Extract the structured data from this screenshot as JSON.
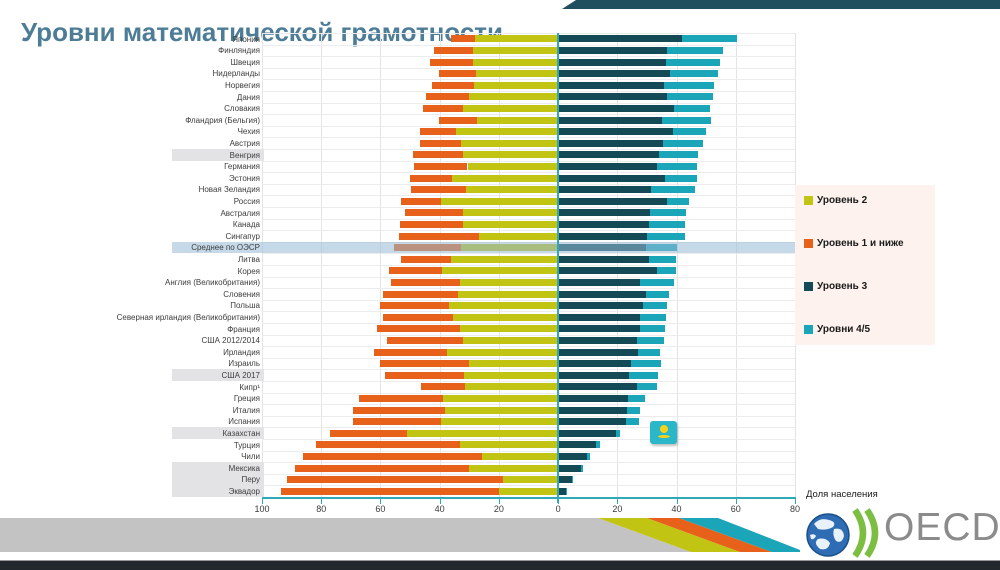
{
  "title": "Уровни математической грамотности",
  "colors": {
    "title": "#4d7d96",
    "level1_and_below": "#e8611a",
    "level2": "#c2c414",
    "level3": "#134a55",
    "level45": "#1aa5b8",
    "axis": "#2fa9b8",
    "highlight_grey": "#e3e3e6",
    "highlight_blue": "rgba(150,186,214,0.55)",
    "legend_bg": "#fdf2ee"
  },
  "axis": {
    "xlabel": "Доля населения",
    "tick_values": [
      -100,
      -80,
      -60,
      -40,
      -20,
      0,
      20,
      40,
      60,
      80
    ],
    "tick_labels": [
      "100",
      "80",
      "60",
      "40",
      "20",
      "0",
      "20",
      "40",
      "60",
      "80"
    ]
  },
  "legend": {
    "items": [
      {
        "label": "Уровень 2",
        "color": "#c2c414"
      },
      {
        "label": "Уровень 1 и ниже",
        "color": "#e8611a"
      },
      {
        "label": "Уровень 3",
        "color": "#134a55"
      },
      {
        "label": "Уровни 4/5",
        "color": "#1aa5b8"
      }
    ]
  },
  "logo": {
    "text": "OECD"
  },
  "chart_data": {
    "type": "bar",
    "subtype": "diverging-stacked-horizontal",
    "unit": "% населения",
    "xlim": [
      -100,
      80
    ],
    "grid": true,
    "legend_position": "right",
    "series_order_note": "values = [Уровень 1 и ниже (влево, внешний), Уровень 2 (влево, внутренний), Уровень 3 (вправо, внутренний), Уровни 4/5 (вправо, внешний)]",
    "rows": [
      {
        "label": "Япония",
        "values": [
          8.2,
          27.9,
          42.0,
          18.4
        ]
      },
      {
        "label": "Финляндия",
        "values": [
          12.9,
          28.9,
          36.7,
          19.1
        ]
      },
      {
        "label": "Швеция",
        "values": [
          14.4,
          28.8,
          36.5,
          18.2
        ]
      },
      {
        "label": "Нидерланды",
        "values": [
          12.6,
          27.7,
          37.8,
          16.3
        ]
      },
      {
        "label": "Норвегия",
        "values": [
          14.3,
          28.3,
          35.6,
          16.9
        ]
      },
      {
        "label": "Дания",
        "values": [
          14.6,
          30.0,
          36.7,
          15.7
        ]
      },
      {
        "label": "Словакия",
        "values": [
          13.7,
          32.0,
          39.2,
          12.2
        ]
      },
      {
        "label": "Фландрия (Бельгия)",
        "values": [
          12.8,
          27.5,
          35.1,
          16.4
        ]
      },
      {
        "label": "Чехия",
        "values": [
          12.4,
          34.4,
          38.7,
          11.2
        ]
      },
      {
        "label": "Австрия",
        "values": [
          13.7,
          32.9,
          35.4,
          13.5
        ]
      },
      {
        "label": "Венгрия",
        "values": [
          17.1,
          32.0,
          34.0,
          13.4
        ],
        "highlight": "grey"
      },
      {
        "label": "Германия",
        "values": [
          18.2,
          30.6,
          33.3,
          13.7
        ]
      },
      {
        "label": "Эстония",
        "values": [
          14.1,
          35.9,
          36.2,
          10.6
        ]
      },
      {
        "label": "Новая Зеландия",
        "values": [
          18.5,
          31.1,
          31.5,
          14.7
        ]
      },
      {
        "label": "Россия",
        "values": [
          13.7,
          39.4,
          36.7,
          7.4
        ]
      },
      {
        "label": "Австралия",
        "values": [
          19.8,
          32.0,
          31.1,
          12.2
        ]
      },
      {
        "label": "Канада",
        "values": [
          21.4,
          32.0,
          30.6,
          12.2
        ]
      },
      {
        "label": "Сингапур",
        "values": [
          27.0,
          26.6,
          30.0,
          13.0
        ]
      },
      {
        "label": "Среднее по ОЭСР",
        "values": [
          22.4,
          32.9,
          29.7,
          10.6
        ],
        "highlight": "blue"
      },
      {
        "label": "Литва",
        "values": [
          17.0,
          36.1,
          30.6,
          9.2
        ]
      },
      {
        "label": "Корея",
        "values": [
          18.0,
          39.2,
          33.3,
          6.5
        ]
      },
      {
        "label": "Англия (Великобритания)",
        "values": [
          23.4,
          33.1,
          27.5,
          11.7
        ]
      },
      {
        "label": "Словения",
        "values": [
          25.5,
          33.7,
          29.7,
          7.7
        ]
      },
      {
        "label": "Польша",
        "values": [
          23.3,
          37.0,
          28.8,
          8.1
        ]
      },
      {
        "label": "Северная ирландия (Великобритания)",
        "values": [
          23.4,
          35.6,
          27.5,
          8.8
        ]
      },
      {
        "label": "Франция",
        "values": [
          27.9,
          33.1,
          27.5,
          8.6
        ]
      },
      {
        "label": "США 2012/2014",
        "values": [
          25.5,
          32.2,
          26.6,
          9.2
        ]
      },
      {
        "label": "Ирландия",
        "values": [
          24.5,
          37.6,
          27.1,
          7.3
        ]
      },
      {
        "label": "Израиль",
        "values": [
          30.0,
          30.2,
          24.5,
          10.1
        ]
      },
      {
        "label": "США 2017",
        "values": [
          26.6,
          31.7,
          24.1,
          9.7
        ],
        "highlight": "grey"
      },
      {
        "label": "Кипр¹",
        "values": [
          15.0,
          31.4,
          26.6,
          6.8
        ]
      },
      {
        "label": "Греция",
        "values": [
          28.2,
          38.9,
          23.7,
          5.6
        ]
      },
      {
        "label": "Италия",
        "values": [
          31.0,
          38.2,
          23.4,
          4.3
        ]
      },
      {
        "label": "Испания",
        "values": [
          29.7,
          39.6,
          23.0,
          4.2
        ]
      },
      {
        "label": "Казахстан",
        "values": [
          25.9,
          51.1,
          19.6,
          1.4
        ],
        "highlight": "grey",
        "flag": "kazakhstan"
      },
      {
        "label": "Турция",
        "values": [
          48.6,
          33.1,
          12.8,
          1.4
        ]
      },
      {
        "label": "Чили",
        "values": [
          60.4,
          25.8,
          9.7,
          1.1
        ]
      },
      {
        "label": "Мексика",
        "values": [
          58.9,
          30.0,
          7.7,
          0.8
        ],
        "highlight": "grey"
      },
      {
        "label": "Перу",
        "values": [
          72.9,
          18.5,
          4.6,
          0.5
        ],
        "highlight": "grey"
      },
      {
        "label": "Эквадор",
        "values": [
          73.8,
          19.8,
          2.7,
          0.3
        ],
        "highlight": "grey"
      }
    ]
  }
}
